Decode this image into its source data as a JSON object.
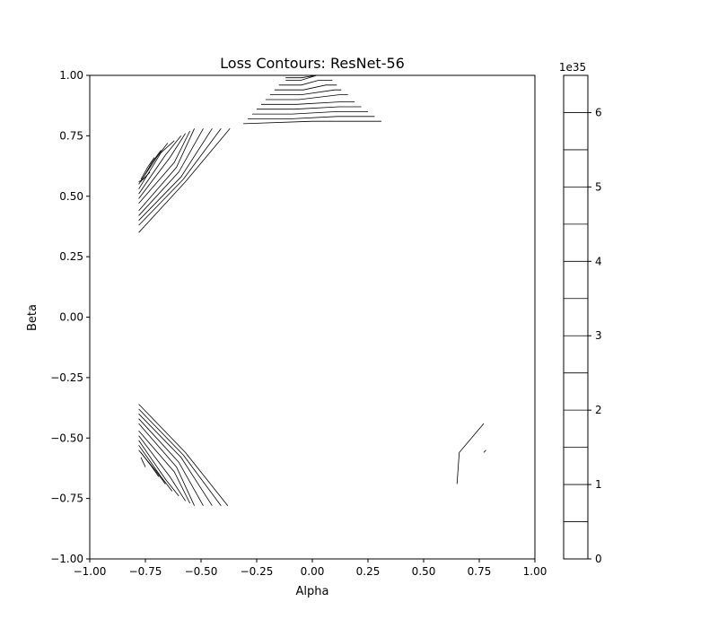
{
  "chart_data": {
    "type": "contour",
    "title": "Loss Contours: ResNet-56",
    "xlabel": "Alpha",
    "ylabel": "Beta",
    "xlim": [
      -1.0,
      1.0
    ],
    "ylim": [
      -1.0,
      1.0
    ],
    "xticks": [
      -1.0,
      -0.75,
      -0.5,
      -0.25,
      0.0,
      0.25,
      0.5,
      0.75,
      1.0
    ],
    "yticks": [
      -1.0,
      -0.75,
      -0.5,
      -0.25,
      0.0,
      0.25,
      0.5,
      0.75,
      1.0
    ],
    "xtick_labels": [
      "−1.00",
      "−0.75",
      "−0.50",
      "−0.25",
      "0.00",
      "0.25",
      "0.50",
      "0.75",
      "1.00"
    ],
    "ytick_labels": [
      "−1.00",
      "−0.75",
      "−0.50",
      "−0.25",
      "0.00",
      "0.25",
      "0.50",
      "0.75",
      "1.00"
    ],
    "line_color": "#000000",
    "colorbar": {
      "range": [
        0,
        6.5
      ],
      "exponent_label": "1e35",
      "ticks": [
        0,
        1,
        2,
        3,
        4,
        5,
        6
      ],
      "tick_labels": [
        "0",
        "1",
        "2",
        "3",
        "4",
        "5",
        "6"
      ],
      "levels": [
        0.5,
        1.0,
        1.5,
        2.0,
        2.5,
        3.0,
        3.5,
        4.0,
        4.5,
        5.0,
        5.5,
        6.0
      ]
    },
    "contour_groups": [
      {
        "name": "upper-left",
        "lines": [
          [
            [
              -0.78,
              0.35
            ],
            [
              -0.57,
              0.56
            ],
            [
              -0.37,
              0.78
            ]
          ],
          [
            [
              -0.78,
              0.38
            ],
            [
              -0.58,
              0.57
            ],
            [
              -0.41,
              0.78
            ]
          ],
          [
            [
              -0.78,
              0.4
            ],
            [
              -0.59,
              0.58
            ],
            [
              -0.45,
              0.78
            ]
          ],
          [
            [
              -0.78,
              0.42
            ],
            [
              -0.6,
              0.6
            ],
            [
              -0.49,
              0.78
            ]
          ],
          [
            [
              -0.78,
              0.44
            ],
            [
              -0.61,
              0.62
            ],
            [
              -0.53,
              0.78
            ]
          ],
          [
            [
              -0.78,
              0.47
            ],
            [
              -0.62,
              0.64
            ],
            [
              -0.55,
              0.77
            ]
          ],
          [
            [
              -0.78,
              0.49
            ],
            [
              -0.64,
              0.66
            ],
            [
              -0.57,
              0.76
            ]
          ],
          [
            [
              -0.78,
              0.51
            ],
            [
              -0.66,
              0.67
            ],
            [
              -0.59,
              0.75
            ]
          ],
          [
            [
              -0.78,
              0.53
            ],
            [
              -0.68,
              0.68
            ],
            [
              -0.62,
              0.73
            ]
          ],
          [
            [
              -0.78,
              0.55
            ],
            [
              -0.7,
              0.66
            ],
            [
              -0.65,
              0.72
            ]
          ],
          [
            [
              -0.77,
              0.56
            ],
            [
              -0.72,
              0.64
            ],
            [
              -0.68,
              0.69
            ]
          ],
          [
            [
              -0.77,
              0.57
            ],
            [
              -0.74,
              0.62
            ],
            [
              -0.71,
              0.66
            ]
          ],
          [
            [
              -0.78,
              0.56
            ],
            [
              -0.76,
              0.57
            ],
            [
              -0.73,
              0.6
            ]
          ]
        ]
      },
      {
        "name": "lower-left",
        "lines": [
          [
            [
              -0.78,
              -0.36
            ],
            [
              -0.57,
              -0.56
            ],
            [
              -0.38,
              -0.78
            ]
          ],
          [
            [
              -0.78,
              -0.38
            ],
            [
              -0.58,
              -0.57
            ],
            [
              -0.41,
              -0.78
            ]
          ],
          [
            [
              -0.78,
              -0.4
            ],
            [
              -0.59,
              -0.58
            ],
            [
              -0.45,
              -0.78
            ]
          ],
          [
            [
              -0.78,
              -0.42
            ],
            [
              -0.6,
              -0.6
            ],
            [
              -0.49,
              -0.78
            ]
          ],
          [
            [
              -0.78,
              -0.44
            ],
            [
              -0.61,
              -0.62
            ],
            [
              -0.53,
              -0.78
            ]
          ],
          [
            [
              -0.78,
              -0.47
            ],
            [
              -0.62,
              -0.64
            ],
            [
              -0.55,
              -0.77
            ]
          ],
          [
            [
              -0.78,
              -0.49
            ],
            [
              -0.64,
              -0.66
            ],
            [
              -0.57,
              -0.76
            ]
          ],
          [
            [
              -0.78,
              -0.51
            ],
            [
              -0.66,
              -0.67
            ],
            [
              -0.6,
              -0.74
            ]
          ],
          [
            [
              -0.78,
              -0.53
            ],
            [
              -0.68,
              -0.66
            ],
            [
              -0.63,
              -0.72
            ]
          ],
          [
            [
              -0.78,
              -0.55
            ],
            [
              -0.7,
              -0.64
            ],
            [
              -0.66,
              -0.69
            ]
          ],
          [
            [
              -0.77,
              -0.56
            ],
            [
              -0.72,
              -0.62
            ],
            [
              -0.69,
              -0.66
            ]
          ],
          [
            [
              -0.77,
              -0.58
            ],
            [
              -0.75,
              -0.62
            ]
          ]
        ]
      },
      {
        "name": "top-center",
        "lines": [
          [
            [
              -0.31,
              0.8
            ],
            [
              0.0,
              0.81
            ],
            [
              0.1,
              0.81
            ],
            [
              0.31,
              0.81
            ]
          ],
          [
            [
              -0.29,
              0.82
            ],
            [
              -0.1,
              0.82
            ],
            [
              0.11,
              0.83
            ],
            [
              0.28,
              0.83
            ]
          ],
          [
            [
              -0.27,
              0.84
            ],
            [
              -0.09,
              0.84
            ],
            [
              0.11,
              0.85
            ],
            [
              0.25,
              0.85
            ]
          ],
          [
            [
              -0.25,
              0.86
            ],
            [
              -0.08,
              0.86
            ],
            [
              0.12,
              0.87
            ],
            [
              0.22,
              0.87
            ]
          ],
          [
            [
              -0.23,
              0.88
            ],
            [
              -0.07,
              0.88
            ],
            [
              0.12,
              0.89
            ],
            [
              0.19,
              0.89
            ]
          ],
          [
            [
              -0.21,
              0.9
            ],
            [
              -0.06,
              0.9
            ],
            [
              0.12,
              0.92
            ],
            [
              0.16,
              0.92
            ]
          ],
          [
            [
              -0.19,
              0.92
            ],
            [
              -0.05,
              0.92
            ],
            [
              0.1,
              0.94
            ],
            [
              0.13,
              0.94
            ]
          ],
          [
            [
              -0.17,
              0.94
            ],
            [
              -0.04,
              0.94
            ],
            [
              0.06,
              0.96
            ],
            [
              0.11,
              0.96
            ]
          ],
          [
            [
              -0.15,
              0.96
            ],
            [
              -0.05,
              0.96
            ],
            [
              0.03,
              0.98
            ],
            [
              0.09,
              0.98
            ]
          ],
          [
            [
              -0.12,
              0.98
            ],
            [
              -0.05,
              0.98
            ],
            [
              0.02,
              1.0
            ],
            [
              0.08,
              1.0
            ]
          ],
          [
            [
              -0.12,
              0.99
            ],
            [
              -0.05,
              0.99
            ],
            [
              0.02,
              1.0
            ]
          ]
        ]
      },
      {
        "name": "lower-right",
        "lines": [
          [
            [
              0.65,
              -0.69
            ],
            [
              0.66,
              -0.56
            ],
            [
              0.77,
              -0.44
            ]
          ],
          [
            [
              0.77,
              -0.56
            ],
            [
              0.78,
              -0.55
            ]
          ]
        ]
      }
    ]
  }
}
